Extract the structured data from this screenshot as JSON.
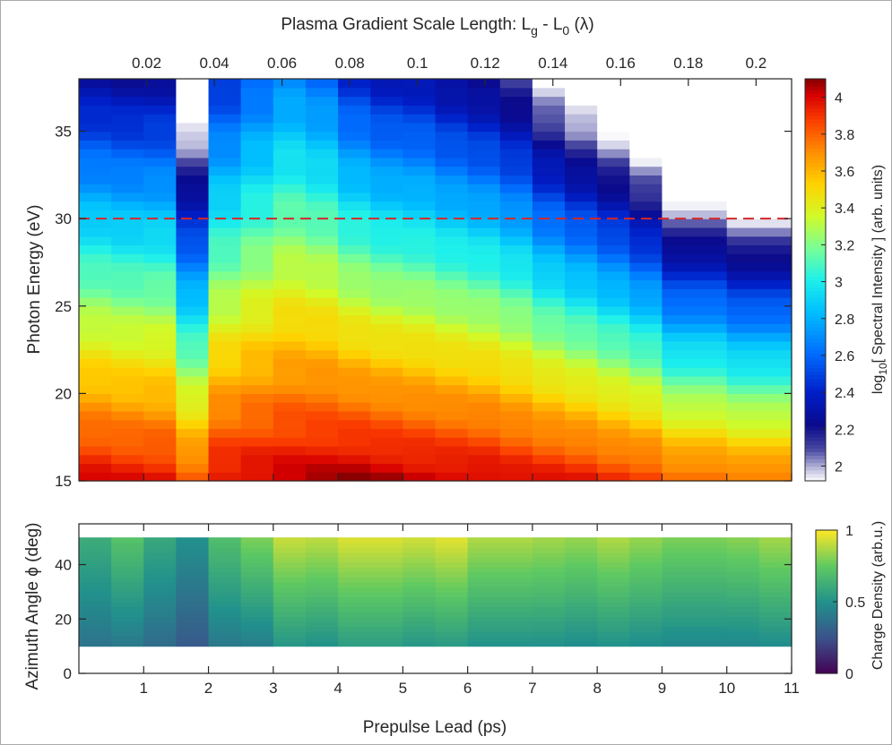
{
  "chart_data": [
    {
      "type": "heatmap",
      "title": "Plasma Gradient Scale Length: L_g - L_0 (λ)",
      "title_parts": {
        "prefix": "Plasma Gradient Scale Length: L",
        "sub1": "g",
        "mid": " - L",
        "sub2": "0",
        "suffix": " (λ)"
      },
      "xlabel": "Prepulse Lead (ps)",
      "ylabel": "Photon Energy (eV)",
      "xlim": [
        0,
        11
      ],
      "ylim": [
        15,
        38
      ],
      "yticks": [
        15,
        20,
        25,
        30,
        35
      ],
      "top_axis": {
        "ticks": [
          0.02,
          0.04,
          0.06,
          0.08,
          0.1,
          0.12,
          0.14,
          0.16,
          0.18,
          0.2
        ],
        "tick_labels": [
          "0.02",
          "0.04",
          "0.06",
          "0.08",
          "0.1",
          "0.12",
          "0.14",
          "0.16",
          "0.18",
          "0.2"
        ],
        "xlim": [
          0,
          0.2105
        ]
      },
      "annotation": {
        "type": "hline",
        "y": 30,
        "style": "dashed",
        "color": "#d62728"
      },
      "colorbar": {
        "label": "log10[ Spectral Intensity ] (arb. units)",
        "label_parts": {
          "prefix": "log",
          "sub": "10",
          "suffix": "[ Spectral Intensity ] (arb. units)"
        },
        "range": [
          1.92,
          4.1
        ],
        "ticks": [
          2,
          2.2,
          2.4,
          2.6,
          2.8,
          3,
          3.2,
          3.4,
          3.6,
          3.8,
          4
        ],
        "tick_labels": [
          "2",
          "2.2",
          "2.4",
          "2.6",
          "2.8",
          "3",
          "3.2",
          "3.4",
          "3.6",
          "3.8",
          "4"
        ],
        "colormap": "jet-with-white-low"
      },
      "columns": [
        {
          "x": [
            0.0,
            0.5
          ],
          "peak": 4.0,
          "decay": 0.075
        },
        {
          "x": [
            0.5,
            1.0
          ],
          "peak": 3.98,
          "decay": 0.075
        },
        {
          "x": [
            1.0,
            1.5
          ],
          "peak": 3.97,
          "decay": 0.074
        },
        {
          "x": [
            1.5,
            2.0
          ],
          "peak": 3.84,
          "decay": 0.095
        },
        {
          "x": [
            2.0,
            2.5
          ],
          "peak": 4.0,
          "decay": 0.068
        },
        {
          "x": [
            2.5,
            3.0
          ],
          "peak": 4.02,
          "decay": 0.063
        },
        {
          "x": [
            3.0,
            3.5
          ],
          "peak": 4.04,
          "decay": 0.059
        },
        {
          "x": [
            3.5,
            4.0
          ],
          "peak": 4.06,
          "decay": 0.063
        },
        {
          "x": [
            4.0,
            4.5
          ],
          "peak": 4.08,
          "decay": 0.072
        },
        {
          "x": [
            4.5,
            5.0
          ],
          "peak": 4.07,
          "decay": 0.075
        },
        {
          "x": [
            5.0,
            5.5
          ],
          "peak": 4.05,
          "decay": 0.075
        },
        {
          "x": [
            5.5,
            6.0
          ],
          "peak": 4.04,
          "decay": 0.078
        },
        {
          "x": [
            6.0,
            6.5
          ],
          "peak": 4.03,
          "decay": 0.08
        },
        {
          "x": [
            6.5,
            7.0
          ],
          "peak": 4.0,
          "decay": 0.083
        },
        {
          "x": [
            7.0,
            7.5
          ],
          "peak": 3.98,
          "decay": 0.091
        },
        {
          "x": [
            7.5,
            8.0
          ],
          "peak": 3.96,
          "decay": 0.096
        },
        {
          "x": [
            8.0,
            8.5
          ],
          "peak": 3.92,
          "decay": 0.1
        },
        {
          "x": [
            8.5,
            9.0
          ],
          "peak": 3.9,
          "decay": 0.107
        },
        {
          "x": [
            9.0,
            10.0
          ],
          "peak": 3.82,
          "decay": 0.118
        },
        {
          "x": [
            10.0,
            11.0
          ],
          "peak": 3.78,
          "decay": 0.122
        }
      ]
    },
    {
      "type": "heatmap",
      "xlabel": "Prepulse Lead (ps)",
      "ylabel": "Azimuth Angle ϕ (deg)",
      "xlim": [
        0,
        11
      ],
      "xticks": [
        1,
        2,
        3,
        4,
        5,
        6,
        7,
        8,
        9,
        10,
        11
      ],
      "ylim": [
        0,
        55
      ],
      "yticks": [
        0,
        20,
        40
      ],
      "y_extent": [
        10,
        50
      ],
      "colorbar": {
        "label": "Charge Density (arb.u.)",
        "range": [
          0,
          1
        ],
        "ticks": [
          0,
          0.5,
          1
        ],
        "tick_labels": [
          "0",
          "0.5",
          "1"
        ],
        "colormap": "viridis"
      },
      "columns": [
        {
          "x": [
            0.0,
            0.5
          ],
          "top": 0.62,
          "bottom": 0.38
        },
        {
          "x": [
            0.5,
            1.0
          ],
          "top": 0.72,
          "bottom": 0.4
        },
        {
          "x": [
            1.0,
            1.5
          ],
          "top": 0.6,
          "bottom": 0.35
        },
        {
          "x": [
            1.5,
            2.0
          ],
          "top": 0.5,
          "bottom": 0.28
        },
        {
          "x": [
            2.0,
            2.5
          ],
          "top": 0.7,
          "bottom": 0.4
        },
        {
          "x": [
            2.5,
            3.0
          ],
          "top": 0.8,
          "bottom": 0.42
        },
        {
          "x": [
            3.0,
            3.5
          ],
          "top": 0.92,
          "bottom": 0.52
        },
        {
          "x": [
            3.5,
            4.0
          ],
          "top": 0.9,
          "bottom": 0.5
        },
        {
          "x": [
            4.0,
            5.0
          ],
          "top": 0.95,
          "bottom": 0.55
        },
        {
          "x": [
            5.0,
            5.5
          ],
          "top": 0.93,
          "bottom": 0.52
        },
        {
          "x": [
            5.5,
            6.0
          ],
          "top": 0.96,
          "bottom": 0.54
        },
        {
          "x": [
            6.0,
            7.0
          ],
          "top": 0.88,
          "bottom": 0.5
        },
        {
          "x": [
            7.0,
            7.5
          ],
          "top": 0.86,
          "bottom": 0.5
        },
        {
          "x": [
            7.5,
            8.0
          ],
          "top": 0.84,
          "bottom": 0.48
        },
        {
          "x": [
            8.0,
            8.5
          ],
          "top": 0.88,
          "bottom": 0.5
        },
        {
          "x": [
            8.5,
            9.0
          ],
          "top": 0.84,
          "bottom": 0.48
        },
        {
          "x": [
            9.0,
            10.0
          ],
          "top": 0.8,
          "bottom": 0.46
        },
        {
          "x": [
            10.0,
            10.5
          ],
          "top": 0.82,
          "bottom": 0.46
        },
        {
          "x": [
            10.5,
            11.0
          ],
          "top": 0.86,
          "bottom": 0.48
        }
      ]
    }
  ]
}
